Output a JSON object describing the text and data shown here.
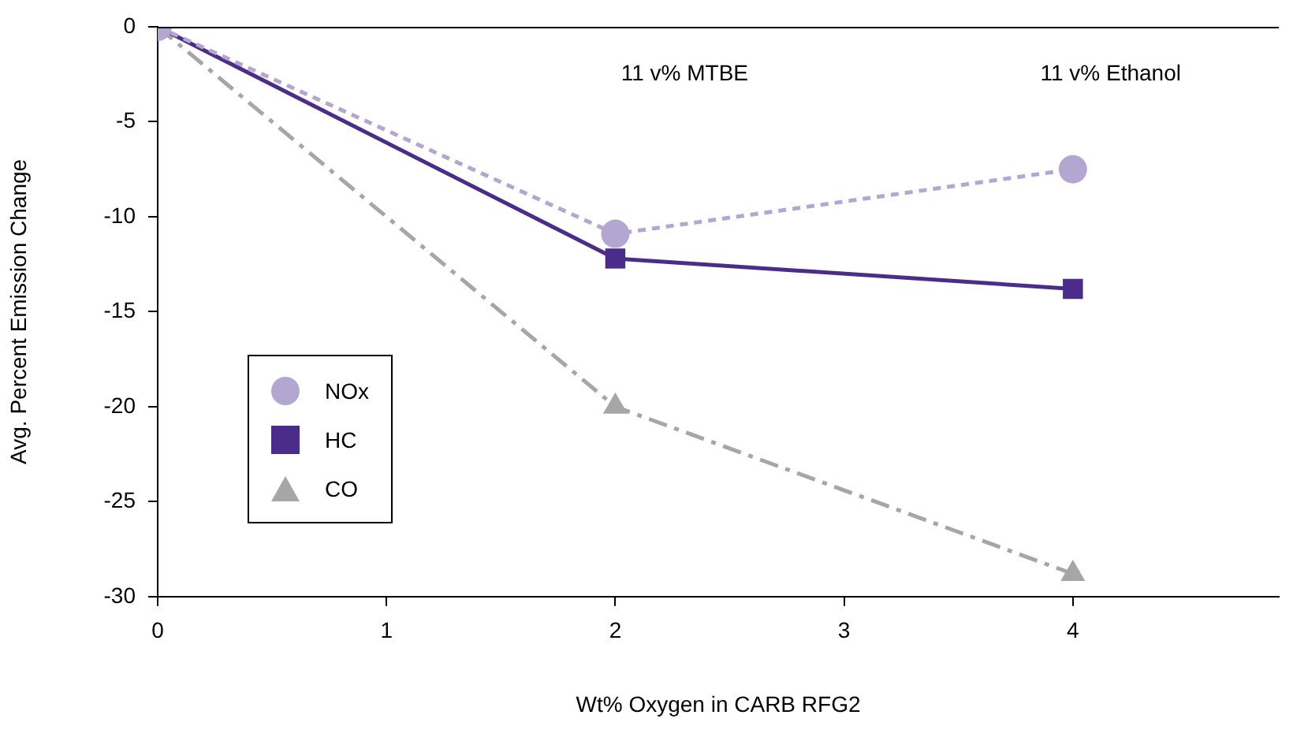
{
  "chart_data": {
    "type": "line",
    "xlabel": "Wt% Oxygen in CARB RFG2",
    "ylabel": "Avg. Percent Emission Change",
    "x": [
      0,
      2,
      4
    ],
    "xlim": [
      0,
      4.9
    ],
    "xticks": [
      0,
      1,
      2,
      3,
      4
    ],
    "ylim": [
      -30,
      0
    ],
    "yticks": [
      -30,
      -25,
      -20,
      -15,
      -10,
      -5,
      0
    ],
    "grid": false,
    "legend": "bottom left",
    "series": [
      {
        "name": "NOx",
        "color": "#b3a7d2",
        "values": [
          0,
          -10.9,
          -7.5
        ],
        "marker": "circle",
        "line_style": "dashed"
      },
      {
        "name": "HC",
        "color": "#4b2c8a",
        "values": [
          0,
          -12.2,
          -13.8
        ],
        "marker": "square",
        "line_style": "solid"
      },
      {
        "name": "CO",
        "color": "#a6a6a6",
        "values": [
          0,
          -20,
          -28.8
        ],
        "marker": "triangle",
        "line_style": "dashdot"
      }
    ],
    "annotations": [
      "11 v% MTBE",
      "11 v% Ethanol"
    ]
  }
}
